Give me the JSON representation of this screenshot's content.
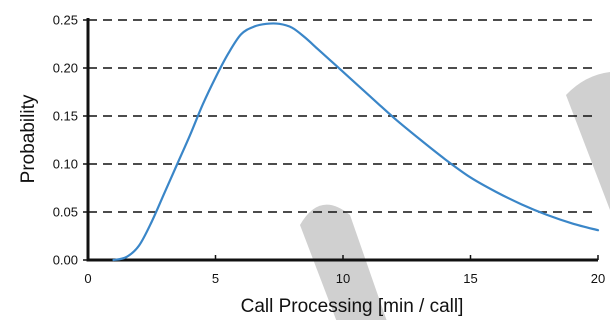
{
  "chart_data": {
    "type": "line",
    "title": "",
    "xlabel": "Call Processing [min / call]",
    "ylabel": "Probability",
    "xlim": [
      0,
      20
    ],
    "ylim": [
      0,
      0.25
    ],
    "x_ticks": [
      "0",
      "5",
      "10",
      "15",
      "20"
    ],
    "y_ticks": [
      "0.00",
      "0.05",
      "0.10",
      "0.15",
      "0.20",
      "0.25"
    ],
    "grid": "horizontal dashed",
    "legend": "none",
    "colors": {
      "line": "#3a86c8",
      "grid": "#111111",
      "axis": "#111111",
      "watermark": "#d0d0d0"
    },
    "series": [
      {
        "x": [
          1,
          1.5,
          2,
          2.5,
          3,
          3.5,
          4,
          4.5,
          5,
          5.5,
          6,
          6.5,
          7,
          7.5,
          8,
          8.5,
          9,
          9.5,
          10,
          11,
          12,
          13,
          14,
          15,
          16,
          17,
          18,
          19,
          20
        ],
        "values": [
          0.0,
          0.003,
          0.015,
          0.04,
          0.07,
          0.1,
          0.13,
          0.162,
          0.19,
          0.215,
          0.235,
          0.243,
          0.246,
          0.246,
          0.242,
          0.232,
          0.22,
          0.208,
          0.196,
          0.172,
          0.148,
          0.126,
          0.105,
          0.086,
          0.071,
          0.058,
          0.047,
          0.038,
          0.031
        ]
      }
    ]
  }
}
